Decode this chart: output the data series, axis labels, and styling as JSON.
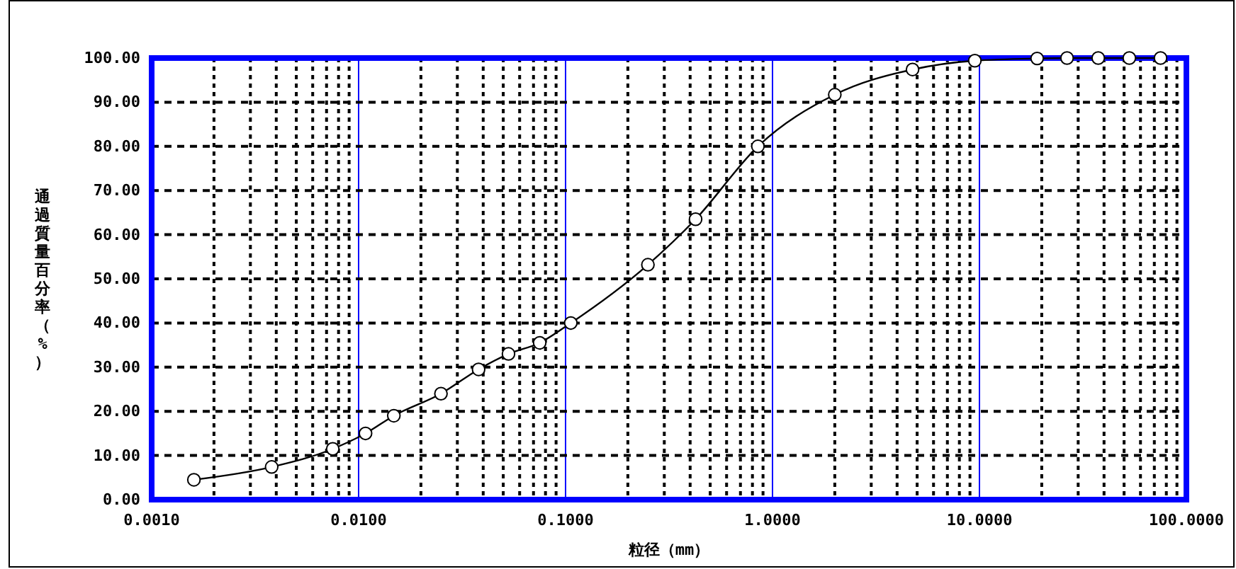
{
  "chart_data": {
    "type": "line",
    "xlabel": "粒径（mm）",
    "ylabel": "通過質量百分率（%）",
    "x": [
      0.0016,
      0.0038,
      0.0075,
      0.0108,
      0.0148,
      0.025,
      0.038,
      0.053,
      0.075,
      0.106,
      0.25,
      0.425,
      0.85,
      2.0,
      4.75,
      9.5,
      19,
      26.5,
      37.5,
      53,
      75
    ],
    "series": [
      {
        "color": "#000000",
        "values": [
          4.5,
          7.4,
          11.5,
          15,
          19,
          24,
          29.5,
          33,
          35.5,
          40,
          53.2,
          63.5,
          80,
          91.7,
          97.4,
          99.4,
          99.9,
          100,
          100,
          100,
          100
        ]
      }
    ],
    "log": "x",
    "xlim": [
      0.001,
      100
    ],
    "xticks": [
      {
        "value": 0.001,
        "label": "0.0010"
      },
      {
        "value": 0.002,
        "label": null
      },
      {
        "value": 0.003,
        "label": null
      },
      {
        "value": 0.004,
        "label": null
      },
      {
        "value": 0.005,
        "label": null
      },
      {
        "value": 0.006,
        "label": null
      },
      {
        "value": 0.007,
        "label": null
      },
      {
        "value": 0.008,
        "label": null
      },
      {
        "value": 0.009,
        "label": null
      },
      {
        "value": 0.01,
        "label": "0.0100"
      },
      {
        "value": 0.02,
        "label": null
      },
      {
        "value": 0.03,
        "label": null
      },
      {
        "value": 0.04,
        "label": null
      },
      {
        "value": 0.05,
        "label": null
      },
      {
        "value": 0.06,
        "label": null
      },
      {
        "value": 0.07,
        "label": null
      },
      {
        "value": 0.08,
        "label": null
      },
      {
        "value": 0.09,
        "label": null
      },
      {
        "value": 0.1,
        "label": "0.1000"
      },
      {
        "value": 0.2,
        "label": null
      },
      {
        "value": 0.3,
        "label": null
      },
      {
        "value": 0.4,
        "label": null
      },
      {
        "value": 0.5,
        "label": null
      },
      {
        "value": 0.6,
        "label": null
      },
      {
        "value": 0.7,
        "label": null
      },
      {
        "value": 0.8,
        "label": null
      },
      {
        "value": 0.9,
        "label": null
      },
      {
        "value": 1,
        "label": "1.0000"
      },
      {
        "value": 2,
        "label": null
      },
      {
        "value": 3,
        "label": null
      },
      {
        "value": 4,
        "label": null
      },
      {
        "value": 5,
        "label": null
      },
      {
        "value": 6,
        "label": null
      },
      {
        "value": 7,
        "label": null
      },
      {
        "value": 8,
        "label": null
      },
      {
        "value": 9,
        "label": null
      },
      {
        "value": 10,
        "label": "10.0000"
      },
      {
        "value": 20,
        "label": null
      },
      {
        "value": 30,
        "label": null
      },
      {
        "value": 40,
        "label": null
      },
      {
        "value": 50,
        "label": null
      },
      {
        "value": 60,
        "label": null
      },
      {
        "value": 70,
        "label": null
      },
      {
        "value": 80,
        "label": null
      },
      {
        "value": 90,
        "label": null
      },
      {
        "value": 100,
        "label": "100.0000"
      }
    ],
    "ylim": [
      0,
      100
    ],
    "yticks": [
      {
        "value": 0,
        "label": "0.00"
      },
      {
        "value": 10,
        "label": "10.00"
      },
      {
        "value": 20,
        "label": "20.00"
      },
      {
        "value": 30,
        "label": "30.00"
      },
      {
        "value": 40,
        "label": "40.00"
      },
      {
        "value": 50,
        "label": "50.00"
      },
      {
        "value": 60,
        "label": "60.00"
      },
      {
        "value": 70,
        "label": "70.00"
      },
      {
        "value": 80,
        "label": "80.00"
      },
      {
        "value": 90,
        "label": "90.00"
      },
      {
        "value": 100,
        "label": "100.00"
      }
    ],
    "grid": true,
    "marker": "circle",
    "line_style": "solid"
  }
}
